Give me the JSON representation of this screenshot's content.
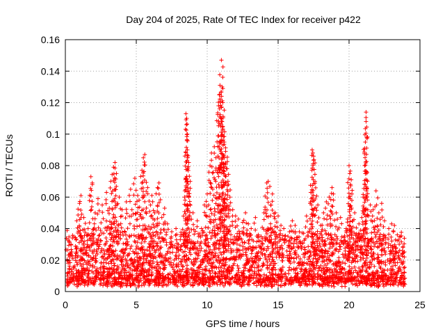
{
  "chart_data": {
    "type": "scatter",
    "title": "Day 204 of 2025, Rate Of TEC Index for receiver p422",
    "xlabel": "GPS time / hours",
    "ylabel": "ROTI / TECUs",
    "xlim": [
      0,
      25
    ],
    "ylim": [
      0,
      0.16
    ],
    "x_ticks": [
      0,
      5,
      10,
      15,
      20,
      25
    ],
    "x_tick_labels": [
      "0",
      "5",
      "10",
      "15",
      "20",
      "25"
    ],
    "y_ticks": [
      0,
      0.02,
      0.04,
      0.06,
      0.08,
      0.1,
      0.12,
      0.14,
      0.16
    ],
    "y_tick_labels": [
      "0",
      "0.02",
      "0.04",
      "0.06",
      "0.08",
      "0.1",
      "0.12",
      "0.14",
      "0.16"
    ],
    "grid": true,
    "marker": "+",
    "series_color": "#ff0000",
    "series": [
      {
        "name": "ROTI",
        "points": [
          [
            0.2,
            0.018
          ],
          [
            0.3,
            0.022
          ],
          [
            0.4,
            0.03
          ],
          [
            0.5,
            0.034
          ],
          [
            0.8,
            0.045
          ],
          [
            1.0,
            0.056
          ],
          [
            1.1,
            0.061
          ],
          [
            1.3,
            0.047
          ],
          [
            1.6,
            0.04
          ],
          [
            1.8,
            0.073
          ],
          [
            1.9,
            0.068
          ],
          [
            2.1,
            0.05
          ],
          [
            2.3,
            0.059
          ],
          [
            2.6,
            0.055
          ],
          [
            2.9,
            0.063
          ],
          [
            3.1,
            0.053
          ],
          [
            3.2,
            0.07
          ],
          [
            3.4,
            0.079
          ],
          [
            3.5,
            0.082
          ],
          [
            3.6,
            0.075
          ],
          [
            3.8,
            0.06
          ],
          [
            4.0,
            0.052
          ],
          [
            4.3,
            0.057
          ],
          [
            4.6,
            0.065
          ],
          [
            4.9,
            0.072
          ],
          [
            5.1,
            0.061
          ],
          [
            5.2,
            0.058
          ],
          [
            5.4,
            0.077
          ],
          [
            5.5,
            0.085
          ],
          [
            5.6,
            0.087
          ],
          [
            5.8,
            0.066
          ],
          [
            6.0,
            0.055
          ],
          [
            6.1,
            0.061
          ],
          [
            6.3,
            0.05
          ],
          [
            6.5,
            0.066
          ],
          [
            6.6,
            0.069
          ],
          [
            6.8,
            0.047
          ],
          [
            7.0,
            0.053
          ],
          [
            7.2,
            0.043
          ],
          [
            7.5,
            0.038
          ],
          [
            7.8,
            0.04
          ],
          [
            8.1,
            0.033
          ],
          [
            8.4,
            0.06
          ],
          [
            8.5,
            0.113
          ],
          [
            8.55,
            0.11
          ],
          [
            8.6,
            0.1
          ],
          [
            8.6,
            0.09
          ],
          [
            8.7,
            0.082
          ],
          [
            8.8,
            0.07
          ],
          [
            9.0,
            0.05
          ],
          [
            9.3,
            0.045
          ],
          [
            9.6,
            0.04
          ],
          [
            9.8,
            0.055
          ],
          [
            10.0,
            0.062
          ],
          [
            10.2,
            0.08
          ],
          [
            10.3,
            0.088
          ],
          [
            10.5,
            0.092
          ],
          [
            10.6,
            0.07
          ],
          [
            10.8,
            0.118
          ],
          [
            10.85,
            0.125
          ],
          [
            10.9,
            0.131
          ],
          [
            11.0,
            0.147
          ],
          [
            11.05,
            0.13
          ],
          [
            11.1,
            0.12
          ],
          [
            11.1,
            0.105
          ],
          [
            11.2,
            0.095
          ],
          [
            11.2,
            0.085
          ],
          [
            11.3,
            0.089
          ],
          [
            11.4,
            0.078
          ],
          [
            11.5,
            0.068
          ],
          [
            11.6,
            0.06
          ],
          [
            11.8,
            0.052
          ],
          [
            12.0,
            0.048
          ],
          [
            12.2,
            0.046
          ],
          [
            12.5,
            0.044
          ],
          [
            12.7,
            0.05
          ],
          [
            12.9,
            0.043
          ],
          [
            13.1,
            0.04
          ],
          [
            13.4,
            0.047
          ],
          [
            13.6,
            0.036
          ],
          [
            13.8,
            0.035
          ],
          [
            14.0,
            0.05
          ],
          [
            14.2,
            0.069
          ],
          [
            14.3,
            0.07
          ],
          [
            14.5,
            0.055
          ],
          [
            14.6,
            0.062
          ],
          [
            14.8,
            0.05
          ],
          [
            15.0,
            0.048
          ],
          [
            15.2,
            0.042
          ],
          [
            15.4,
            0.04
          ],
          [
            15.8,
            0.038
          ],
          [
            16.0,
            0.045
          ],
          [
            16.2,
            0.042
          ],
          [
            16.5,
            0.038
          ],
          [
            16.8,
            0.037
          ],
          [
            17.0,
            0.048
          ],
          [
            17.3,
            0.063
          ],
          [
            17.4,
            0.09
          ],
          [
            17.45,
            0.088
          ],
          [
            17.5,
            0.086
          ],
          [
            17.6,
            0.07
          ],
          [
            17.8,
            0.055
          ],
          [
            18.0,
            0.042
          ],
          [
            18.2,
            0.05
          ],
          [
            18.4,
            0.057
          ],
          [
            18.6,
            0.06
          ],
          [
            18.8,
            0.066
          ],
          [
            18.9,
            0.062
          ],
          [
            19.1,
            0.05
          ],
          [
            19.4,
            0.047
          ],
          [
            19.6,
            0.032
          ],
          [
            19.8,
            0.04
          ],
          [
            19.9,
            0.046
          ],
          [
            20.0,
            0.08
          ],
          [
            20.05,
            0.075
          ],
          [
            20.1,
            0.068
          ],
          [
            20.2,
            0.062
          ],
          [
            20.4,
            0.05
          ],
          [
            20.7,
            0.043
          ],
          [
            20.9,
            0.047
          ],
          [
            21.0,
            0.06
          ],
          [
            21.1,
            0.08
          ],
          [
            21.15,
            0.095
          ],
          [
            21.2,
            0.108
          ],
          [
            21.2,
            0.114
          ],
          [
            21.3,
            0.07
          ],
          [
            21.5,
            0.055
          ],
          [
            21.7,
            0.052
          ],
          [
            21.9,
            0.064
          ],
          [
            22.1,
            0.05
          ],
          [
            22.3,
            0.056
          ],
          [
            22.5,
            0.045
          ],
          [
            22.8,
            0.04
          ],
          [
            23.0,
            0.043
          ],
          [
            23.2,
            0.042
          ],
          [
            23.4,
            0.036
          ],
          [
            23.6,
            0.035
          ],
          [
            23.8,
            0.028
          ],
          [
            23.9,
            0.022
          ]
        ]
      }
    ]
  }
}
